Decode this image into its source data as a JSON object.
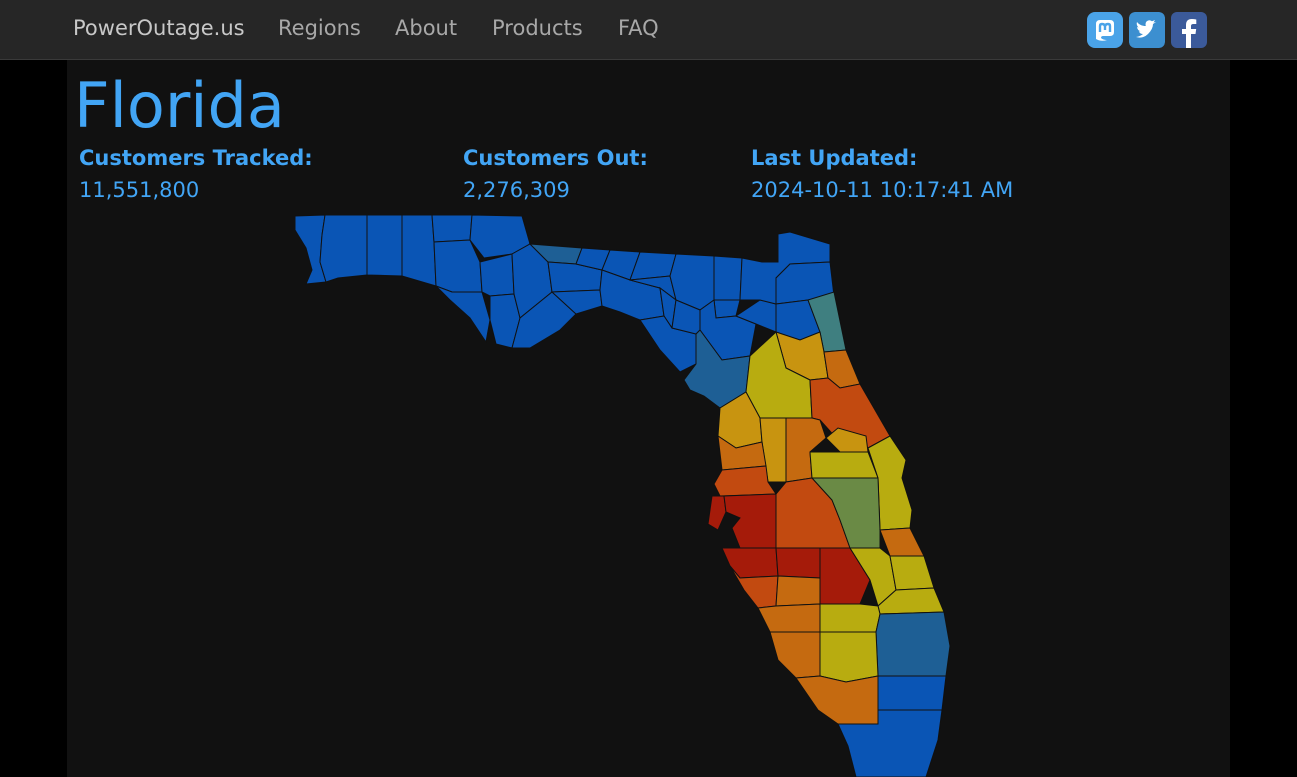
{
  "navbar": {
    "brand": "PowerOutage.us",
    "links": [
      "Regions",
      "About",
      "Products",
      "FAQ"
    ]
  },
  "social": {
    "mastodon_icon": "mastodon-icon",
    "twitter_icon": "twitter-icon",
    "facebook_icon": "facebook-icon"
  },
  "page": {
    "title": "Florida"
  },
  "stats": {
    "tracked_label": "Customers Tracked:",
    "tracked_value": "11,551,800",
    "out_label": "Customers Out:",
    "out_value": "2,276,309",
    "updated_label": "Last Updated:",
    "updated_value": "2024-10-11 10:17:41 AM"
  },
  "colors": {
    "accent": "#42a5f5",
    "low": "#0a55b5",
    "mid_low": "#1e5f95",
    "teal": "#3f7f80",
    "green": "#6a8a45",
    "yellow": "#b8ac10",
    "olive": "#a8a00e",
    "gold": "#c89410",
    "orange": "#c56a10",
    "dark_orange": "#c24a10",
    "red": "#a51b0a"
  }
}
